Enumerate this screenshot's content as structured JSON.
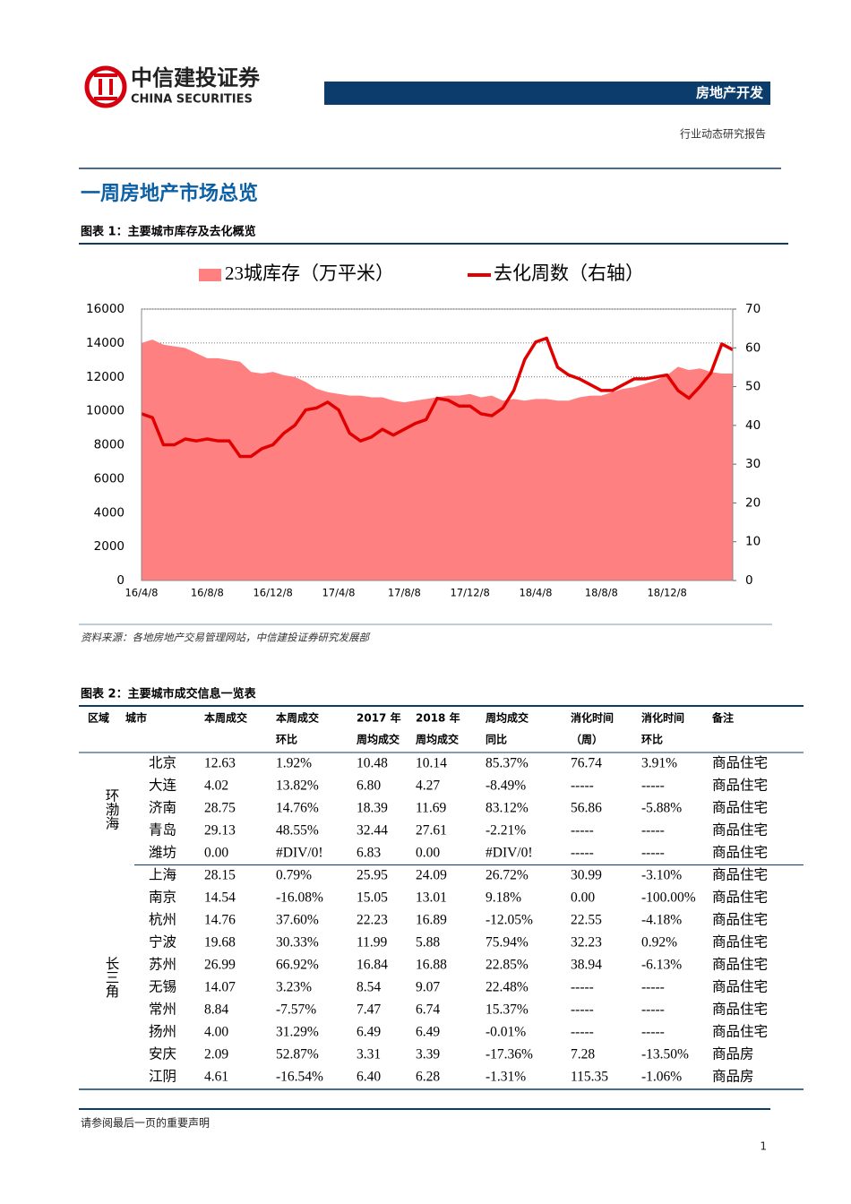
{
  "header": {
    "logo_cn": "中信建投证券",
    "logo_en": "CHINA SECURITIES",
    "sector": "房地产开发",
    "report_type": "行业动态研究报告"
  },
  "section_title": "一周房地产市场总览",
  "figure1": {
    "caption": "图表 1：主要城市库存及去化概览",
    "source": "资料来源：各地房地产交易管理网站，中信建投证券研究发展部"
  },
  "chart_data": {
    "type": "area-line",
    "categories": [
      "16/4/8",
      null,
      null,
      null,
      null,
      null,
      "16/8/8",
      null,
      null,
      null,
      null,
      null,
      "16/12/8",
      null,
      null,
      null,
      null,
      null,
      "17/4/8",
      null,
      null,
      null,
      null,
      null,
      "17/8/8",
      null,
      null,
      null,
      null,
      null,
      "17/12/8",
      null,
      null,
      null,
      null,
      null,
      "18/4/8",
      null,
      null,
      null,
      null,
      null,
      "18/8/8",
      null,
      null,
      null,
      null,
      null,
      "18/12/8",
      null,
      null,
      null,
      null,
      null,
      null
    ],
    "series": [
      {
        "name": "23城库存（万平米）",
        "type": "area",
        "color": "#ff8080",
        "values": [
          14000,
          14200,
          13900,
          13800,
          13700,
          13400,
          13100,
          13100,
          13000,
          12900,
          12300,
          12200,
          12300,
          12100,
          12000,
          11700,
          11300,
          11100,
          11000,
          10900,
          10900,
          10800,
          10800,
          10600,
          10500,
          10600,
          10700,
          10800,
          10900,
          10900,
          11000,
          10800,
          10900,
          10600,
          10700,
          10600,
          10700,
          10700,
          10600,
          10600,
          10800,
          10900,
          10900,
          11100,
          11300,
          11400,
          11600,
          11800,
          12100,
          12600,
          12400,
          12500,
          12300,
          12200,
          12200
        ]
      },
      {
        "name": "去化周数（右轴）",
        "type": "line",
        "color": "#e00000",
        "axis": "y2",
        "values": [
          43,
          42,
          35,
          35,
          36.5,
          36,
          36.5,
          36,
          36,
          32,
          32,
          34,
          35,
          38,
          40,
          44,
          44.5,
          46,
          44,
          38,
          36,
          37,
          39,
          37.5,
          39,
          40.5,
          41.5,
          47,
          46.5,
          45,
          45,
          43,
          42.5,
          44.5,
          49,
          57,
          61.5,
          62.5,
          55,
          53,
          52,
          50.5,
          49,
          49,
          50.5,
          52,
          52,
          52.5,
          53,
          49,
          47,
          50,
          53.5,
          61,
          59.5
        ]
      }
    ],
    "ylim": [
      0,
      16000
    ],
    "yticks": [
      0,
      2000,
      4000,
      6000,
      8000,
      10000,
      12000,
      14000,
      16000
    ],
    "y2lim": [
      0,
      70
    ],
    "y2ticks": [
      0,
      10,
      20,
      30,
      40,
      50,
      60,
      70
    ],
    "grid": true,
    "legend": "top"
  },
  "figure2": {
    "caption": "图表 2：主要城市成交信息一览表"
  },
  "table": {
    "header": [
      [
        "区域"
      ],
      [
        "城市"
      ],
      [
        "本周成交"
      ],
      [
        "本周成交",
        "环比"
      ],
      [
        "2017 年",
        "周均成交"
      ],
      [
        "2018 年",
        "周均成交"
      ],
      [
        "周均成交",
        "同比"
      ],
      [
        "消化时间",
        "（周）"
      ],
      [
        "消化时间",
        "环比"
      ],
      [
        "备注"
      ]
    ],
    "groups": [
      {
        "region": "环渤海",
        "rows": [
          [
            "北京",
            "12.63",
            "1.92%",
            "10.48",
            "10.14",
            "85.37%",
            "76.74",
            "3.91%",
            "商品住宅"
          ],
          [
            "大连",
            "4.02",
            "13.82%",
            "6.80",
            "4.27",
            "-8.49%",
            "-----",
            "-----",
            "商品住宅"
          ],
          [
            "济南",
            "28.75",
            "14.76%",
            "18.39",
            "11.69",
            "83.12%",
            "56.86",
            "-5.88%",
            "商品住宅"
          ],
          [
            "青岛",
            "29.13",
            "48.55%",
            "32.44",
            "27.61",
            "-2.21%",
            "-----",
            "-----",
            "商品住宅"
          ],
          [
            "潍坊",
            "0.00",
            "#DIV/0!",
            "6.83",
            "0.00",
            "#DIV/0!",
            "-----",
            "-----",
            "商品住宅"
          ]
        ]
      },
      {
        "region": "长三角",
        "rows": [
          [
            "上海",
            "28.15",
            "0.79%",
            "25.95",
            "24.09",
            "26.72%",
            "30.99",
            "-3.10%",
            "商品住宅"
          ],
          [
            "南京",
            "14.54",
            "-16.08%",
            "15.05",
            "13.01",
            "9.18%",
            "0.00",
            "-100.00%",
            "商品住宅"
          ],
          [
            "杭州",
            "14.76",
            "37.60%",
            "22.23",
            "16.89",
            "-12.05%",
            "22.55",
            "-4.18%",
            "商品住宅"
          ],
          [
            "宁波",
            "19.68",
            "30.33%",
            "11.99",
            "5.88",
            "75.94%",
            "32.23",
            "0.92%",
            "商品住宅"
          ],
          [
            "苏州",
            "26.99",
            "66.92%",
            "16.84",
            "16.88",
            "22.85%",
            "38.94",
            "-6.13%",
            "商品住宅"
          ],
          [
            "无锡",
            "14.07",
            "3.23%",
            "8.54",
            "9.07",
            "22.48%",
            "-----",
            "-----",
            "商品住宅"
          ],
          [
            "常州",
            "8.84",
            "-7.57%",
            "7.47",
            "6.74",
            "15.37%",
            "-----",
            "-----",
            "商品住宅"
          ],
          [
            "扬州",
            "4.00",
            "31.29%",
            "6.49",
            "6.49",
            "-0.01%",
            "-----",
            "-----",
            "商品住宅"
          ],
          [
            "安庆",
            "2.09",
            "52.87%",
            "3.31",
            "3.39",
            "-17.36%",
            "7.28",
            "-13.50%",
            "商品房"
          ],
          [
            "江阴",
            "4.61",
            "-16.54%",
            "6.40",
            "6.28",
            "-1.31%",
            "115.35",
            "-1.06%",
            "商品房"
          ]
        ]
      }
    ]
  },
  "footer": {
    "disclaimer": "请参阅最后一页的重要声明",
    "page": "1"
  }
}
